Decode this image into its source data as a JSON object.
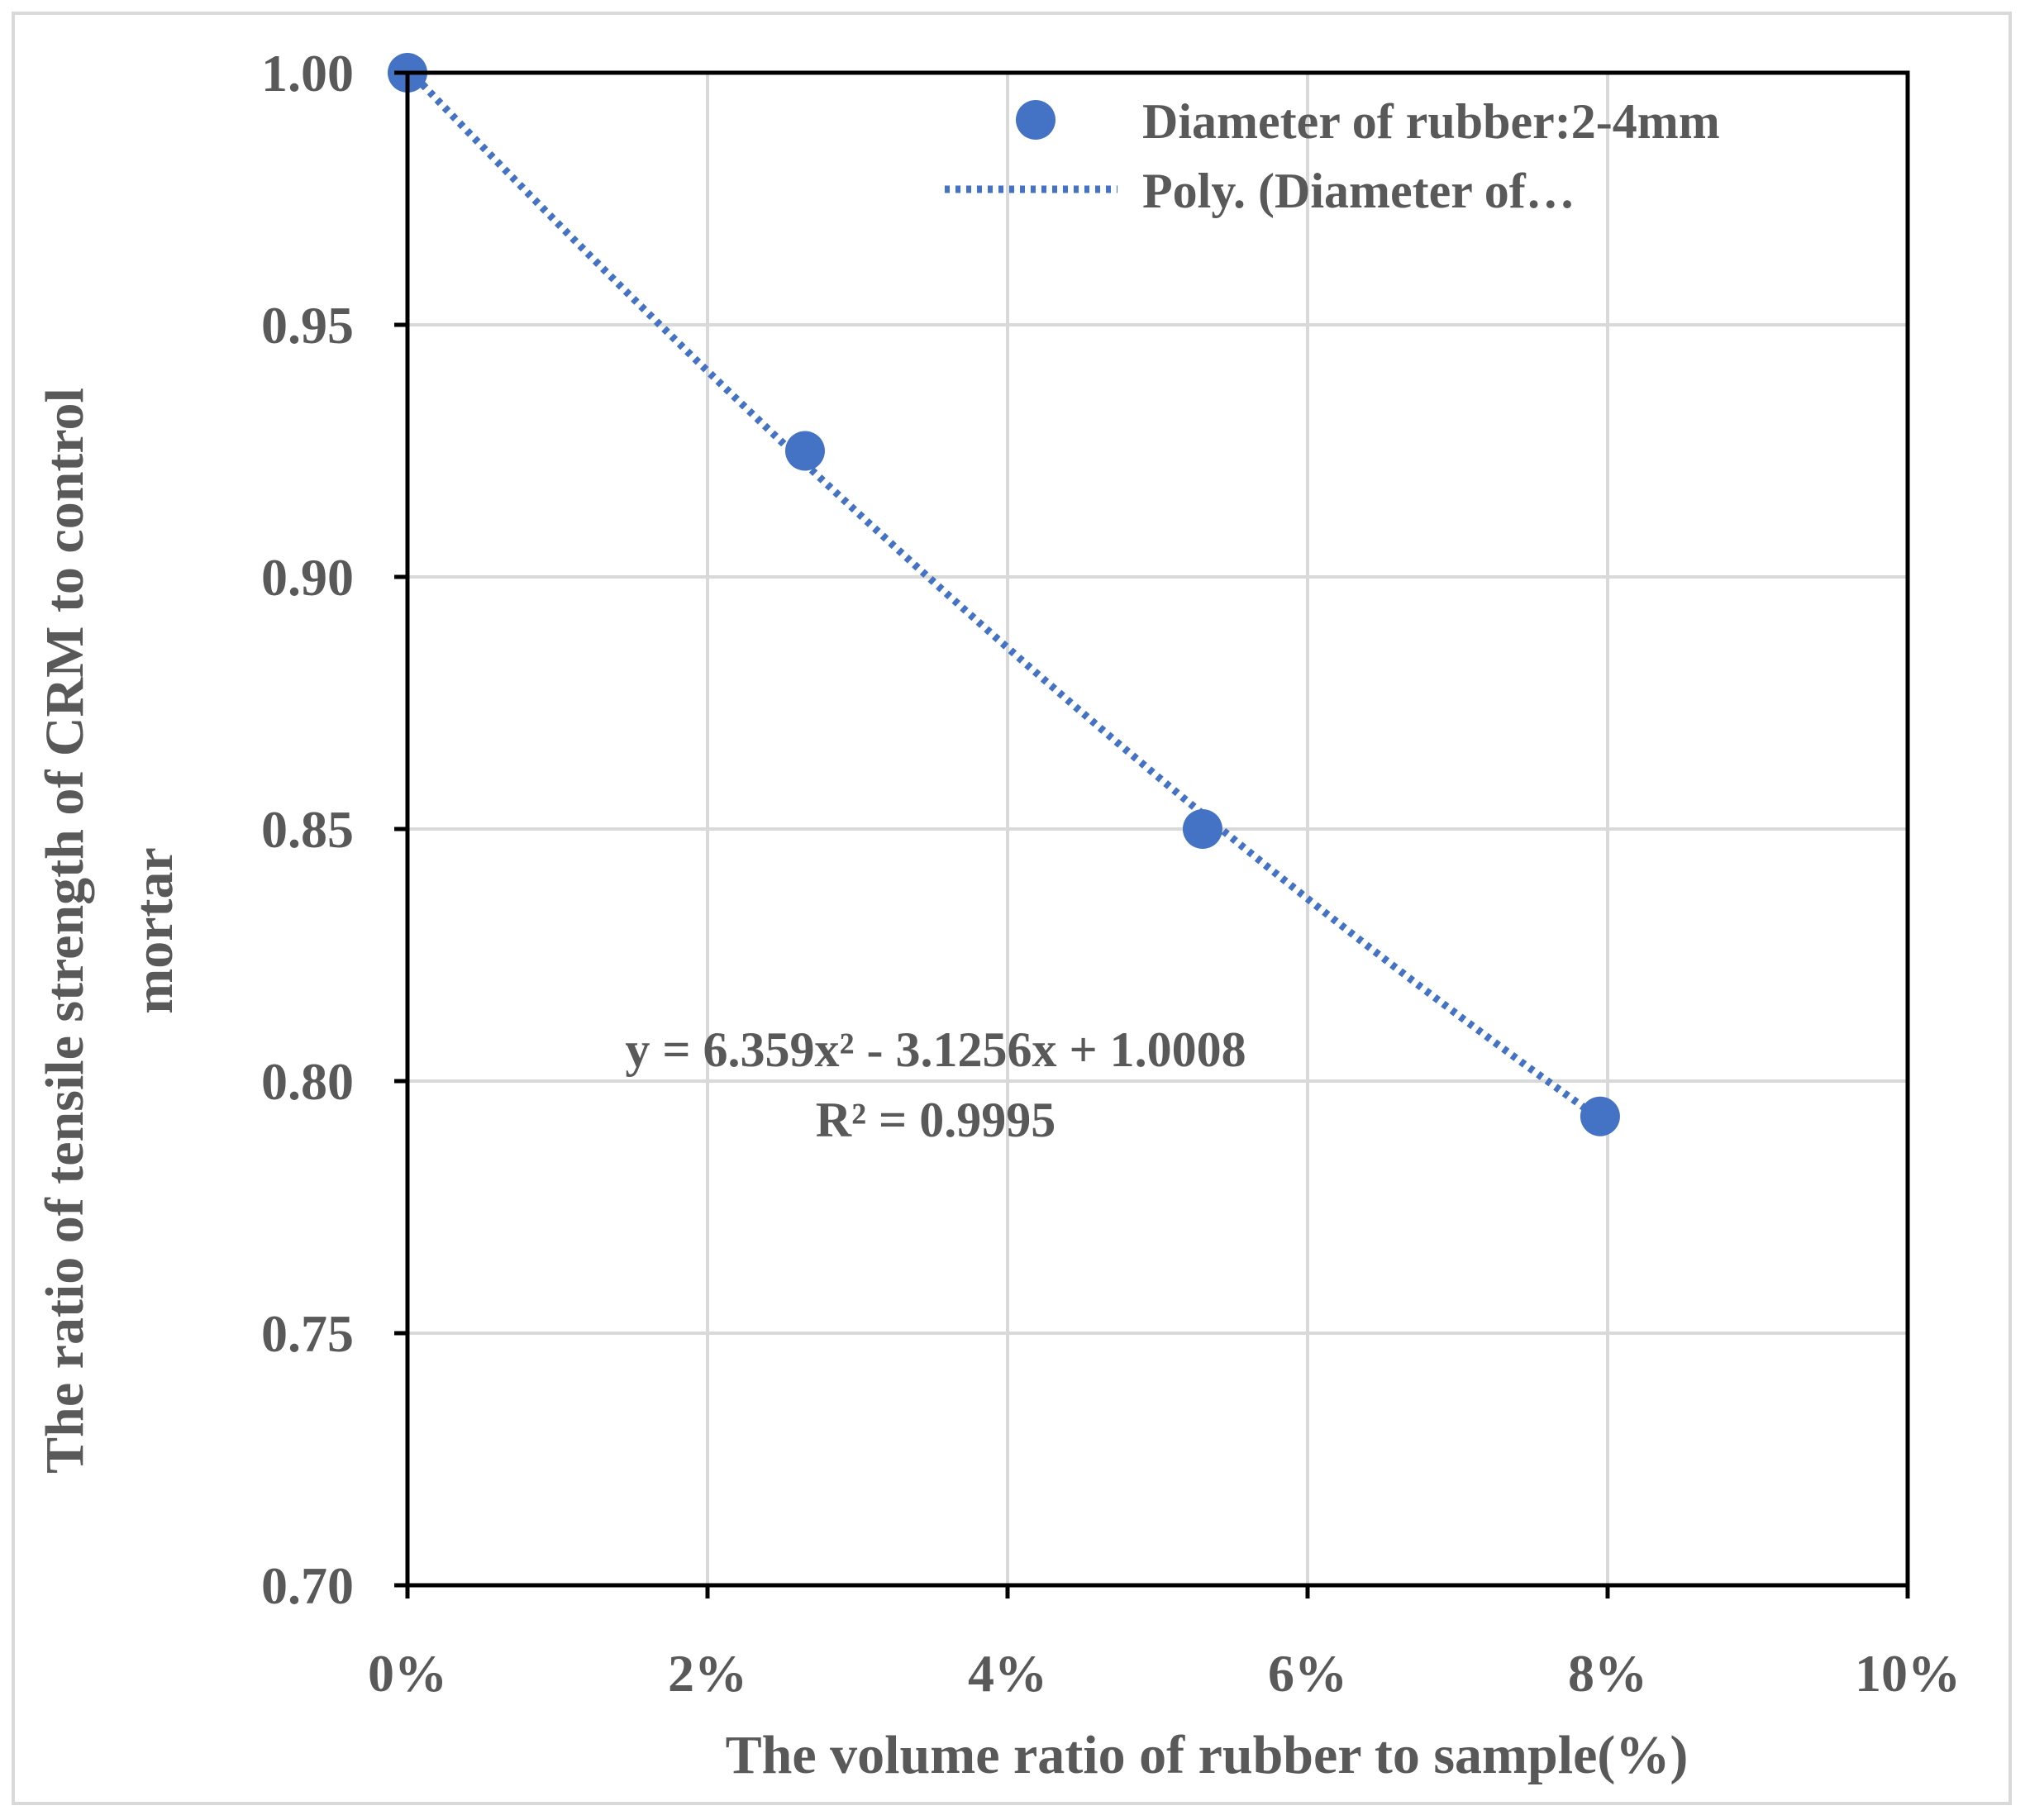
{
  "chart_data": {
    "type": "scatter",
    "title": "",
    "xlabel": "The volume ratio of rubber to sample(%)",
    "ylabel_lines": [
      "The ratio of tensile strength of CRM to control",
      "mortar"
    ],
    "xlim": [
      0,
      0.1
    ],
    "ylim": [
      0.7,
      1.0
    ],
    "xticks": [
      0,
      0.02,
      0.04,
      0.06,
      0.08,
      0.1
    ],
    "xtick_labels": [
      "0%",
      "2%",
      "4%",
      "6%",
      "8%",
      "10%"
    ],
    "yticks": [
      0.7,
      0.75,
      0.8,
      0.85,
      0.9,
      0.95,
      1.0
    ],
    "ytick_labels": [
      "0.70",
      "0.75",
      "0.80",
      "0.85",
      "0.90",
      "0.95",
      "1.00"
    ],
    "grid": true,
    "series": [
      {
        "name": "Diameter of rubber:2-4mm",
        "x": [
          0,
          0.0265,
          0.053,
          0.0795
        ],
        "y": [
          1.0,
          0.925,
          0.85,
          0.793
        ],
        "color": "#4472c4",
        "marker": "circle"
      }
    ],
    "trendline": {
      "name": "Poly. (Diameter of…",
      "type": "polynomial",
      "coefficients": [
        6.359,
        -3.1256,
        1.0008
      ],
      "x_range": [
        0,
        0.0795
      ],
      "color": "#4472c4",
      "style": "dotted"
    },
    "legend": {
      "placement": "top-right",
      "entries": [
        "Diameter of rubber:2-4mm",
        "Poly. (Diameter of…"
      ]
    },
    "annotation": {
      "equation": "y = 6.359x² - 3.1256x + 1.0008",
      "r_squared": "R² = 0.9995"
    }
  }
}
